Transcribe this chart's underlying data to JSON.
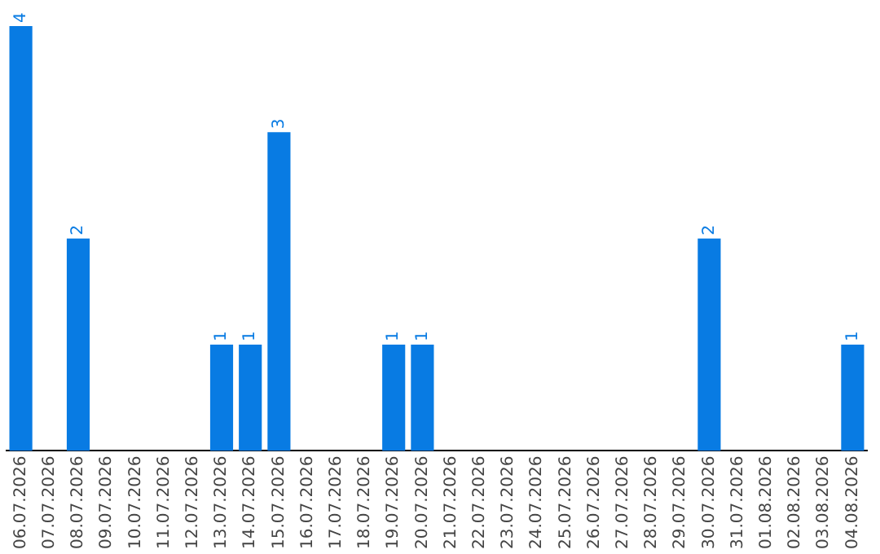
{
  "chart_data": {
    "type": "bar",
    "categories": [
      "06.07.2026",
      "07.07.2026",
      "08.07.2026",
      "09.07.2026",
      "10.07.2026",
      "11.07.2026",
      "12.07.2026",
      "13.07.2026",
      "14.07.2026",
      "15.07.2026",
      "16.07.2026",
      "17.07.2026",
      "18.07.2026",
      "19.07.2026",
      "20.07.2026",
      "21.07.2026",
      "22.07.2026",
      "23.07.2026",
      "24.07.2026",
      "25.07.2026",
      "26.07.2026",
      "27.07.2026",
      "28.07.2026",
      "29.07.2026",
      "30.07.2026",
      "31.07.2026",
      "01.08.2026",
      "02.08.2026",
      "03.08.2026",
      "04.08.2026"
    ],
    "values": [
      4,
      0,
      2,
      0,
      0,
      0,
      0,
      1,
      1,
      3,
      0,
      0,
      0,
      1,
      1,
      0,
      0,
      0,
      0,
      0,
      0,
      0,
      0,
      0,
      2,
      0,
      0,
      0,
      0,
      1
    ],
    "value_labels": [
      "4",
      null,
      "2",
      null,
      null,
      null,
      null,
      "1",
      "1",
      "3",
      null,
      null,
      null,
      "1",
      "1",
      null,
      null,
      null,
      null,
      null,
      null,
      null,
      null,
      null,
      "2",
      null,
      null,
      null,
      null,
      "1"
    ],
    "color": "#087be3",
    "grid": false,
    "legend": false
  }
}
